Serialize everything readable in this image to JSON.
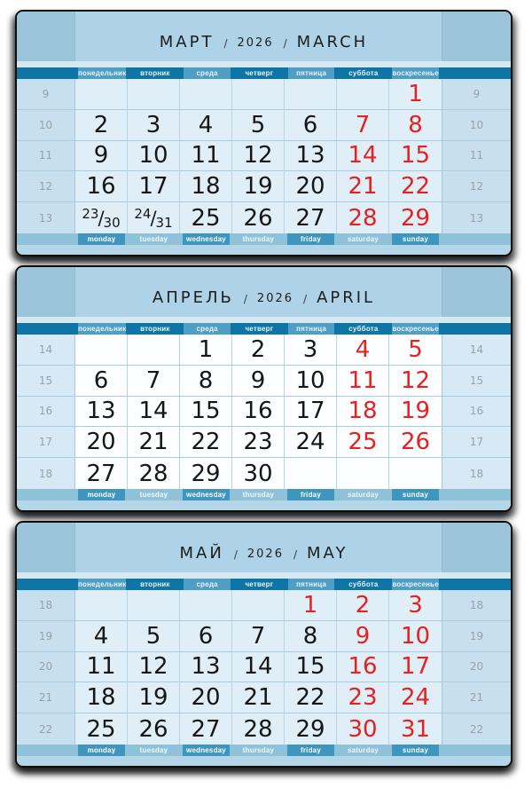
{
  "glyphs": {
    "slash": "/"
  },
  "colors": {
    "block_bg": "#a9cfe4",
    "title_side_bg": "#9cc5db",
    "title_center_bg": "#aed2e7",
    "ru_bar_dark": "#0e75a5",
    "ru_bar_light": "#4f9fc5",
    "en_bar_light": "#8fc2d9",
    "en_bar_dark": "#3e96bf",
    "cell_bg": "#dfeef7",
    "cell_bg_highlight": "#fdfeff",
    "week_col_bg": "#c7dfee",
    "week_number_text": "#97a2a8",
    "date_text": "#161616",
    "holiday_text": "#e32221"
  },
  "weekday_header_ru": [
    "понедельник",
    "вторник",
    "среда",
    "четверг",
    "пятница",
    "суббота",
    "воскресенье"
  ],
  "weekday_footer_en": [
    "monday",
    "tuesday",
    "wednesday",
    "thursday",
    "friday",
    "saturday",
    "sunday"
  ],
  "months": [
    {
      "id": "march",
      "title_ru": "МАРТ",
      "year": "2026",
      "title_en": "MARCH",
      "highlight": false,
      "week_numbers": [
        "9",
        "10",
        "11",
        "12",
        "13"
      ],
      "rows": [
        [
          {
            "d": ""
          },
          {
            "d": ""
          },
          {
            "d": ""
          },
          {
            "d": ""
          },
          {
            "d": ""
          },
          {
            "d": ""
          },
          {
            "d": "1",
            "hol": true
          }
        ],
        [
          {
            "d": "2"
          },
          {
            "d": "3"
          },
          {
            "d": "4"
          },
          {
            "d": "5"
          },
          {
            "d": "6"
          },
          {
            "d": "7",
            "hol": true
          },
          {
            "d": "8",
            "hol": true
          }
        ],
        [
          {
            "d": "9"
          },
          {
            "d": "10"
          },
          {
            "d": "11"
          },
          {
            "d": "12"
          },
          {
            "d": "13"
          },
          {
            "d": "14",
            "hol": true
          },
          {
            "d": "15",
            "hol": true
          }
        ],
        [
          {
            "d": "16"
          },
          {
            "d": "17"
          },
          {
            "d": "18"
          },
          {
            "d": "19"
          },
          {
            "d": "20"
          },
          {
            "d": "21",
            "hol": true
          },
          {
            "d": "22",
            "hol": true
          }
        ],
        [
          {
            "d": "23/30",
            "dual": [
              "23",
              "30"
            ]
          },
          {
            "d": "24/31",
            "dual": [
              "24",
              "31"
            ]
          },
          {
            "d": "25"
          },
          {
            "d": "26"
          },
          {
            "d": "27"
          },
          {
            "d": "28",
            "hol": true
          },
          {
            "d": "29",
            "hol": true
          }
        ]
      ]
    },
    {
      "id": "april",
      "title_ru": "АПРЕЛЬ",
      "year": "2026",
      "title_en": "APRIL",
      "highlight": true,
      "week_numbers": [
        "14",
        "15",
        "16",
        "17",
        "18"
      ],
      "rows": [
        [
          {
            "d": ""
          },
          {
            "d": ""
          },
          {
            "d": "1"
          },
          {
            "d": "2"
          },
          {
            "d": "3"
          },
          {
            "d": "4",
            "hol": true
          },
          {
            "d": "5",
            "hol": true
          }
        ],
        [
          {
            "d": "6"
          },
          {
            "d": "7"
          },
          {
            "d": "8"
          },
          {
            "d": "9"
          },
          {
            "d": "10"
          },
          {
            "d": "11",
            "hol": true
          },
          {
            "d": "12",
            "hol": true
          }
        ],
        [
          {
            "d": "13"
          },
          {
            "d": "14"
          },
          {
            "d": "15"
          },
          {
            "d": "16"
          },
          {
            "d": "17"
          },
          {
            "d": "18",
            "hol": true
          },
          {
            "d": "19",
            "hol": true
          }
        ],
        [
          {
            "d": "20"
          },
          {
            "d": "21"
          },
          {
            "d": "22"
          },
          {
            "d": "23"
          },
          {
            "d": "24"
          },
          {
            "d": "25",
            "hol": true
          },
          {
            "d": "26",
            "hol": true
          }
        ],
        [
          {
            "d": "27"
          },
          {
            "d": "28"
          },
          {
            "d": "29"
          },
          {
            "d": "30"
          },
          {
            "d": ""
          },
          {
            "d": ""
          },
          {
            "d": ""
          }
        ]
      ]
    },
    {
      "id": "may",
      "title_ru": "МАЙ",
      "year": "2026",
      "title_en": "MAY",
      "highlight": false,
      "week_numbers": [
        "18",
        "19",
        "20",
        "21",
        "22"
      ],
      "rows": [
        [
          {
            "d": ""
          },
          {
            "d": ""
          },
          {
            "d": ""
          },
          {
            "d": ""
          },
          {
            "d": "1",
            "hol": true
          },
          {
            "d": "2",
            "hol": true
          },
          {
            "d": "3",
            "hol": true
          }
        ],
        [
          {
            "d": "4"
          },
          {
            "d": "5"
          },
          {
            "d": "6"
          },
          {
            "d": "7"
          },
          {
            "d": "8"
          },
          {
            "d": "9",
            "hol": true
          },
          {
            "d": "10",
            "hol": true
          }
        ],
        [
          {
            "d": "11"
          },
          {
            "d": "12"
          },
          {
            "d": "13"
          },
          {
            "d": "14"
          },
          {
            "d": "15"
          },
          {
            "d": "16",
            "hol": true
          },
          {
            "d": "17",
            "hol": true
          }
        ],
        [
          {
            "d": "18"
          },
          {
            "d": "19"
          },
          {
            "d": "20"
          },
          {
            "d": "21"
          },
          {
            "d": "22"
          },
          {
            "d": "23",
            "hol": true
          },
          {
            "d": "24",
            "hol": true
          }
        ],
        [
          {
            "d": "25"
          },
          {
            "d": "26"
          },
          {
            "d": "27"
          },
          {
            "d": "28"
          },
          {
            "d": "29"
          },
          {
            "d": "30",
            "hol": true
          },
          {
            "d": "31",
            "hol": true
          }
        ]
      ]
    }
  ]
}
